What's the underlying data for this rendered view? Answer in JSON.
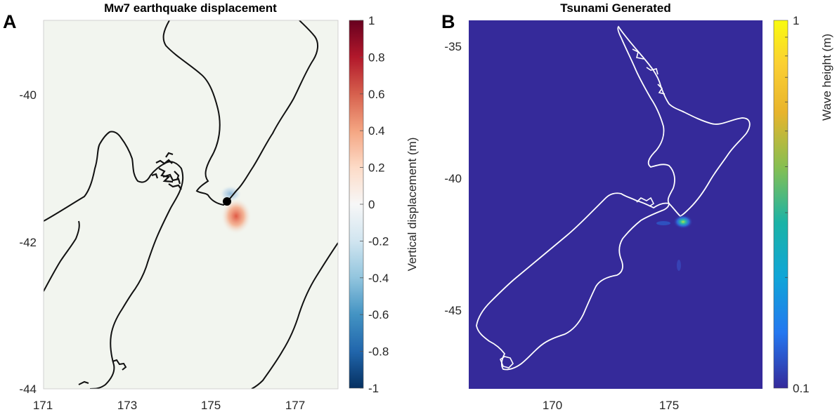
{
  "panels": [
    {
      "letter": "A",
      "title": "Mw7 earthquake displacement",
      "x_ticks": [
        "171",
        "173",
        "175",
        "177"
      ],
      "y_ticks": [
        "-40",
        "-42",
        "-44"
      ],
      "xlim": [
        171,
        178
      ],
      "ylim": [
        -44,
        -39
      ],
      "colorbar": {
        "label": "Vertical displacement (m)",
        "ticks": [
          "1",
          "0.8",
          "0.6",
          "0.4",
          "0.2",
          "0",
          "-0.2",
          "-0.4",
          "-0.6",
          "-0.8",
          "-1"
        ],
        "range": [
          -1,
          1
        ],
        "colormap": "red-white-blue (diverging)"
      },
      "background_color": "#f2f5ef",
      "coastline_color": "#000000",
      "epicenter_marker": {
        "lon": 175.4,
        "lat": -41.5
      },
      "displacement_uplift": {
        "lon": 175.55,
        "lat": -41.7,
        "value": 0.4
      },
      "displacement_subsidence": {
        "lon": 175.4,
        "lat": -41.35,
        "value": -0.2
      }
    },
    {
      "letter": "B",
      "title": "Tsunami Generated",
      "x_ticks": [
        "170",
        "175"
      ],
      "y_ticks": [
        "-35",
        "-40",
        "-45"
      ],
      "xlim": [
        165.5,
        179
      ],
      "ylim": [
        -48,
        -34
      ],
      "colorbar": {
        "label": "Wave height (m)",
        "ticks": [
          "1",
          "0.1"
        ],
        "range": [
          0.1,
          1
        ],
        "scale": "log",
        "colormap": "parula"
      },
      "background_color": "#352a9a",
      "coastline_color": "#ffffff",
      "wave_source": {
        "lon": 175.5,
        "lat": -41.7
      }
    }
  ]
}
